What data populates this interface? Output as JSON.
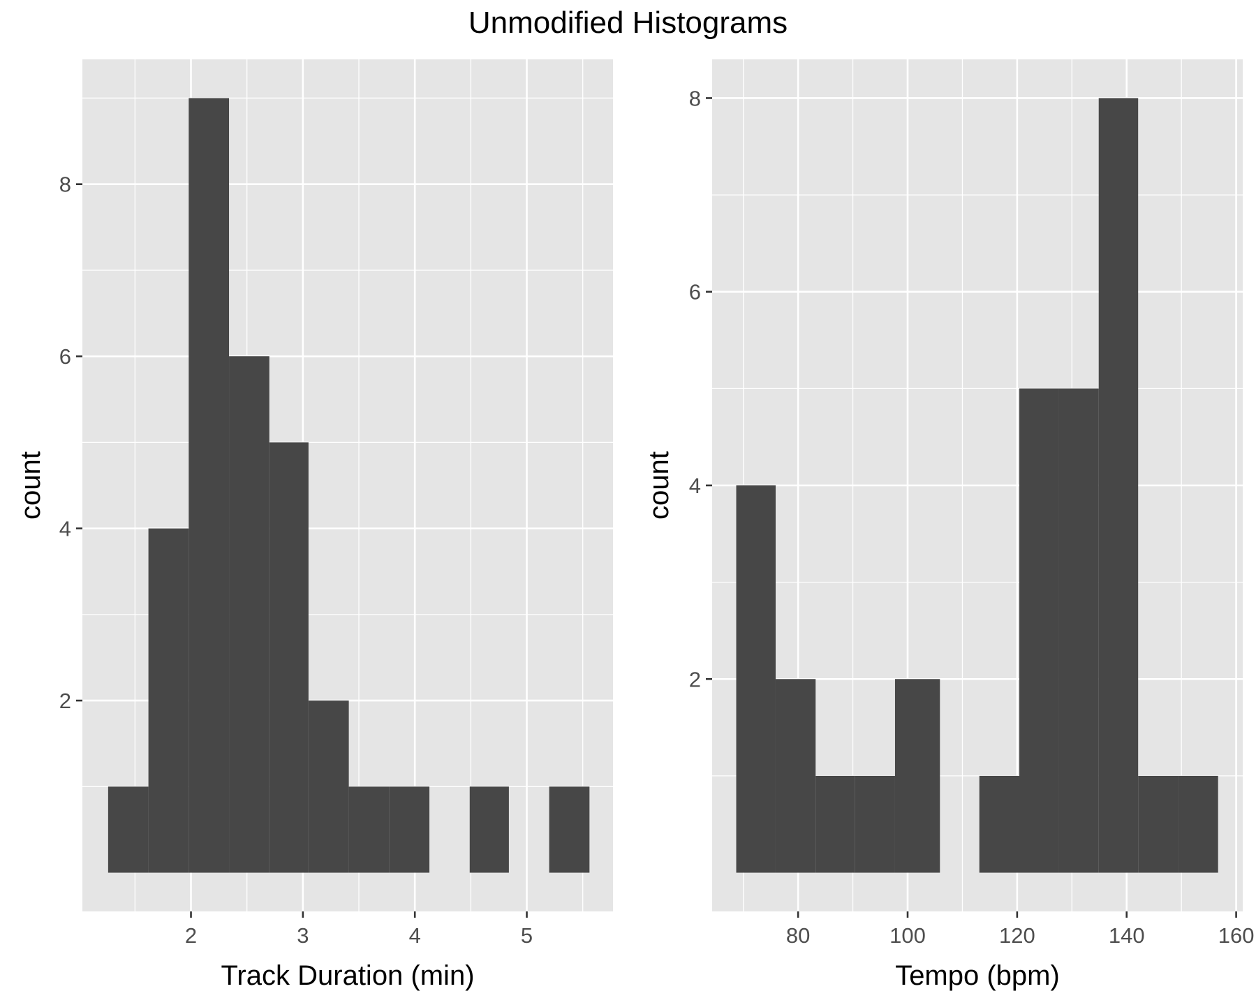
{
  "title": "Unmodified Histograms",
  "chart_data": [
    {
      "type": "histogram",
      "xlabel": "Track Duration (min)",
      "ylabel": "count",
      "xlim": [
        1.03,
        5.77
      ],
      "ylim": [
        -0.45,
        9.45
      ],
      "x_ticks": [
        2,
        3,
        4,
        5
      ],
      "y_ticks": [
        2,
        4,
        6,
        8
      ],
      "grid": true,
      "bins": [
        {
          "x0": 1.26,
          "x1": 1.62,
          "count": 1
        },
        {
          "x0": 1.62,
          "x1": 1.98,
          "count": 4
        },
        {
          "x0": 1.98,
          "x1": 2.34,
          "count": 9
        },
        {
          "x0": 2.34,
          "x1": 2.7,
          "count": 6
        },
        {
          "x0": 2.7,
          "x1": 3.05,
          "count": 5
        },
        {
          "x0": 3.05,
          "x1": 3.41,
          "count": 2
        },
        {
          "x0": 3.41,
          "x1": 3.77,
          "count": 1
        },
        {
          "x0": 3.77,
          "x1": 4.13,
          "count": 1
        },
        {
          "x0": 4.13,
          "x1": 4.49,
          "count": 0
        },
        {
          "x0": 4.49,
          "x1": 4.84,
          "count": 1
        },
        {
          "x0": 4.84,
          "x1": 5.2,
          "count": 0
        },
        {
          "x0": 5.2,
          "x1": 5.56,
          "count": 1
        }
      ]
    },
    {
      "type": "histogram",
      "xlabel": "Tempo (bpm)",
      "ylabel": "count",
      "xlim": [
        64.3,
        161.2
      ],
      "ylim": [
        -0.4,
        8.4
      ],
      "x_ticks": [
        80,
        100,
        120,
        140,
        160
      ],
      "y_ticks": [
        2,
        4,
        6,
        8
      ],
      "grid": true,
      "bins": [
        {
          "x0": 68.7,
          "x1": 75.9,
          "count": 4
        },
        {
          "x0": 75.9,
          "x1": 83.2,
          "count": 2
        },
        {
          "x0": 83.2,
          "x1": 90.4,
          "count": 1
        },
        {
          "x0": 90.4,
          "x1": 97.7,
          "count": 1
        },
        {
          "x0": 97.7,
          "x1": 105.9,
          "count": 2
        },
        {
          "x0": 105.9,
          "x1": 113.1,
          "count": 0
        },
        {
          "x0": 113.1,
          "x1": 120.4,
          "count": 1
        },
        {
          "x0": 120.4,
          "x1": 127.6,
          "count": 5
        },
        {
          "x0": 127.6,
          "x1": 134.9,
          "count": 5
        },
        {
          "x0": 134.9,
          "x1": 142.1,
          "count": 8
        },
        {
          "x0": 142.1,
          "x1": 149.4,
          "count": 1
        },
        {
          "x0": 149.4,
          "x1": 156.7,
          "count": 1
        }
      ]
    }
  ]
}
